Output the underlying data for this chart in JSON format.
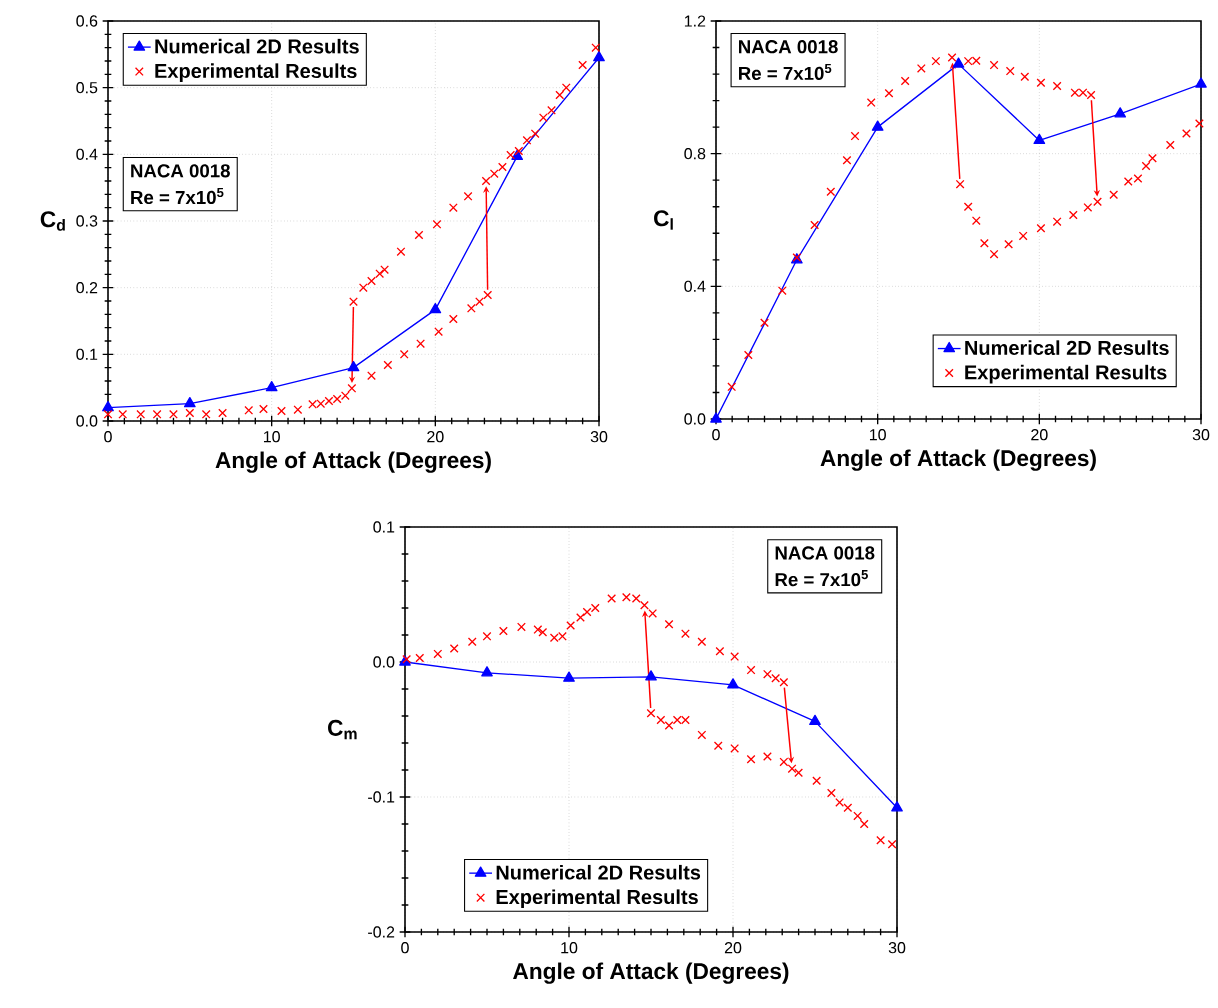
{
  "chart_data": [
    {
      "type": "line",
      "xlabel": "Angle of Attack (Degrees)",
      "ylabel": "C$_{d}$",
      "xlim": [
        0,
        30
      ],
      "xticks": [
        0,
        10,
        20,
        30
      ],
      "ylim": [
        0,
        0.6
      ],
      "yticks": [
        {
          "value": 0,
          "label": "0.0"
        },
        {
          "value": 0.1,
          "label": "0.1"
        },
        {
          "value": 0.2,
          "label": "0.2"
        },
        {
          "value": 0.3,
          "label": "0.3"
        },
        {
          "value": 0.4,
          "label": "0.4"
        },
        {
          "value": 0.5,
          "label": "0.5"
        },
        {
          "value": 0.6,
          "label": "0.6"
        }
      ],
      "grid": true,
      "legend": "top left",
      "annotations": [
        "NACA 0018",
        "Re = 7x10$^{5}$"
      ],
      "series": [
        {
          "name": "Numerical 2D Results",
          "type": "line",
          "color": "#0000ff",
          "marker": "triangle",
          "line_style": "solid",
          "x": [
            0,
            5,
            10,
            15,
            20,
            25,
            30
          ],
          "values": [
            0.02,
            0.026,
            0.05,
            0.08,
            0.167,
            0.397,
            0.545
          ]
        },
        {
          "name": "Experimental Results",
          "type": "scatter",
          "color": "#ff0000",
          "marker": "cross",
          "x": [
            0,
            0.9,
            2,
            3,
            4,
            5,
            6,
            7,
            8.6,
            9.5,
            10.6,
            11.6,
            12.5,
            13,
            13.5,
            14,
            14.5,
            14.9,
            16.1,
            17.1,
            18.1,
            19.1,
            20.2,
            21.1,
            22.2,
            22.7,
            23.2,
            15.0,
            15.6,
            16.1,
            16.6,
            16.9,
            17.9,
            19.0,
            20.1,
            21.1,
            22.0,
            23.1,
            23.6,
            24.1,
            24.6,
            25.1,
            25.6,
            26.1,
            26.6,
            27.1,
            27.6,
            28.0,
            29.0,
            29.8
          ],
          "values": [
            0.01,
            0.01,
            0.01,
            0.01,
            0.01,
            0.012,
            0.01,
            0.012,
            0.016,
            0.018,
            0.015,
            0.017,
            0.025,
            0.026,
            0.03,
            0.033,
            0.038,
            0.049,
            0.068,
            0.084,
            0.1,
            0.116,
            0.134,
            0.153,
            0.169,
            0.179,
            0.189,
            0.179,
            0.2,
            0.21,
            0.221,
            0.227,
            0.254,
            0.279,
            0.295,
            0.32,
            0.337,
            0.36,
            0.371,
            0.381,
            0.399,
            0.405,
            0.421,
            0.431,
            0.455,
            0.466,
            0.489,
            0.5,
            0.534,
            0.56
          ]
        }
      ]
    },
    {
      "type": "line",
      "xlabel": "Angle of Attack (Degrees)",
      "ylabel": "C$_{l}$",
      "xlim": [
        0,
        30
      ],
      "xticks": [
        0,
        10,
        20,
        30
      ],
      "ylim": [
        0,
        1.2
      ],
      "yticks": [
        {
          "value": 0,
          "label": "0.0"
        },
        {
          "value": 0.4,
          "label": "0.4"
        },
        {
          "value": 0.8,
          "label": "0.8"
        },
        {
          "value": 1.2,
          "label": "1.2"
        }
      ],
      "grid": true,
      "legend": "bottom right",
      "annotations": [
        "NACA 0018",
        "Re = 7x10$^{5}$"
      ],
      "series": [
        {
          "name": "Numerical 2D Results",
          "type": "line",
          "color": "#0000ff",
          "marker": "triangle",
          "line_style": "solid",
          "x": [
            0,
            5,
            10,
            15,
            20,
            25,
            30
          ],
          "values": [
            0,
            0.48,
            0.88,
            1.07,
            0.84,
            0.92,
            1.01
          ]
        },
        {
          "name": "Experimental Results",
          "type": "scatter",
          "color": "#ff0000",
          "marker": "cross",
          "x": [
            0.97,
            2,
            3,
            4.1,
            5,
            6.1,
            7.1,
            8.1,
            8.6,
            9.6,
            10.7,
            11.7,
            12.7,
            13.6,
            14.6,
            15.6,
            16.1,
            17.2,
            18.2,
            19.1,
            20.1,
            21.1,
            22.2,
            22.7,
            23.2,
            15.1,
            15.6,
            16.1,
            16.6,
            17.2,
            18.1,
            19.0,
            20.1,
            21.1,
            22.1,
            23.0,
            23.6,
            24.6,
            25.5,
            26.1,
            26.6,
            27.0,
            28.1,
            29.1,
            29.9
          ],
          "values": [
            0.097,
            0.193,
            0.29,
            0.387,
            0.487,
            0.585,
            0.685,
            0.78,
            0.853,
            0.954,
            0.982,
            1.019,
            1.057,
            1.079,
            1.09,
            1.079,
            1.08,
            1.067,
            1.049,
            1.032,
            1.014,
            1.004,
            0.984,
            0.984,
            0.977,
            0.708,
            0.64,
            0.598,
            0.53,
            0.497,
            0.527,
            0.552,
            0.575,
            0.595,
            0.615,
            0.638,
            0.655,
            0.676,
            0.716,
            0.725,
            0.763,
            0.786,
            0.826,
            0.861,
            0.891
          ]
        }
      ]
    },
    {
      "type": "line",
      "xlabel": "Angle of Attack (Degrees)",
      "ylabel": "C$_{m}$",
      "xlim": [
        0,
        30
      ],
      "xticks": [
        0,
        10,
        20,
        30
      ],
      "ylim": [
        -0.2,
        0.1
      ],
      "yticks": [
        {
          "value": -0.2,
          "label": "-0.2"
        },
        {
          "value": -0.1,
          "label": "-0.1"
        },
        {
          "value": 0,
          "label": "0.0"
        },
        {
          "value": 0.1,
          "label": "0.1"
        }
      ],
      "grid": true,
      "legend": "bottom left",
      "annotations": [
        "NACA 0018",
        "Re = 7x10$^{5}$"
      ],
      "series": [
        {
          "name": "Numerical 2D Results",
          "type": "line",
          "color": "#0000ff",
          "marker": "triangle",
          "line_style": "solid",
          "x": [
            0,
            5,
            10,
            15,
            20,
            25,
            30
          ],
          "values": [
            0,
            -0.008,
            -0.012,
            -0.011,
            -0.017,
            -0.044,
            -0.108
          ]
        },
        {
          "name": "Experimental Results",
          "type": "scatter",
          "color": "#ff0000",
          "marker": "cross",
          "x": [
            0.1,
            0.9,
            2,
            3,
            4.1,
            5,
            6,
            7.1,
            8.1,
            8.4,
            9.1,
            9.6,
            10.1,
            10.7,
            11.1,
            11.6,
            12.6,
            13.5,
            14.1,
            14.6,
            15.1,
            16.1,
            17.1,
            18.1,
            19.2,
            20.1,
            21.1,
            22.1,
            22.6,
            23.1,
            15,
            15.6,
            16.1,
            16.6,
            17.1,
            18.1,
            19.1,
            20.1,
            21.1,
            22.1,
            23.1,
            23.6,
            24,
            25.1,
            26,
            26.5,
            27,
            27.6,
            28,
            29,
            29.7
          ],
          "values": [
            0.002,
            0.003,
            0.006,
            0.01,
            0.015,
            0.019,
            0.023,
            0.026,
            0.024,
            0.022,
            0.018,
            0.019,
            0.027,
            0.033,
            0.037,
            0.04,
            0.047,
            0.048,
            0.047,
            0.042,
            0.036,
            0.028,
            0.021,
            0.015,
            0.008,
            0.004,
            -0.006,
            -0.009,
            -0.012,
            -0.015,
            -0.038,
            -0.043,
            -0.047,
            -0.043,
            -0.043,
            -0.054,
            -0.062,
            -0.064,
            -0.072,
            -0.07,
            -0.074,
            -0.079,
            -0.082,
            -0.088,
            -0.097,
            -0.104,
            -0.108,
            -0.114,
            -0.12,
            -0.132,
            -0.135
          ]
        }
      ]
    }
  ]
}
